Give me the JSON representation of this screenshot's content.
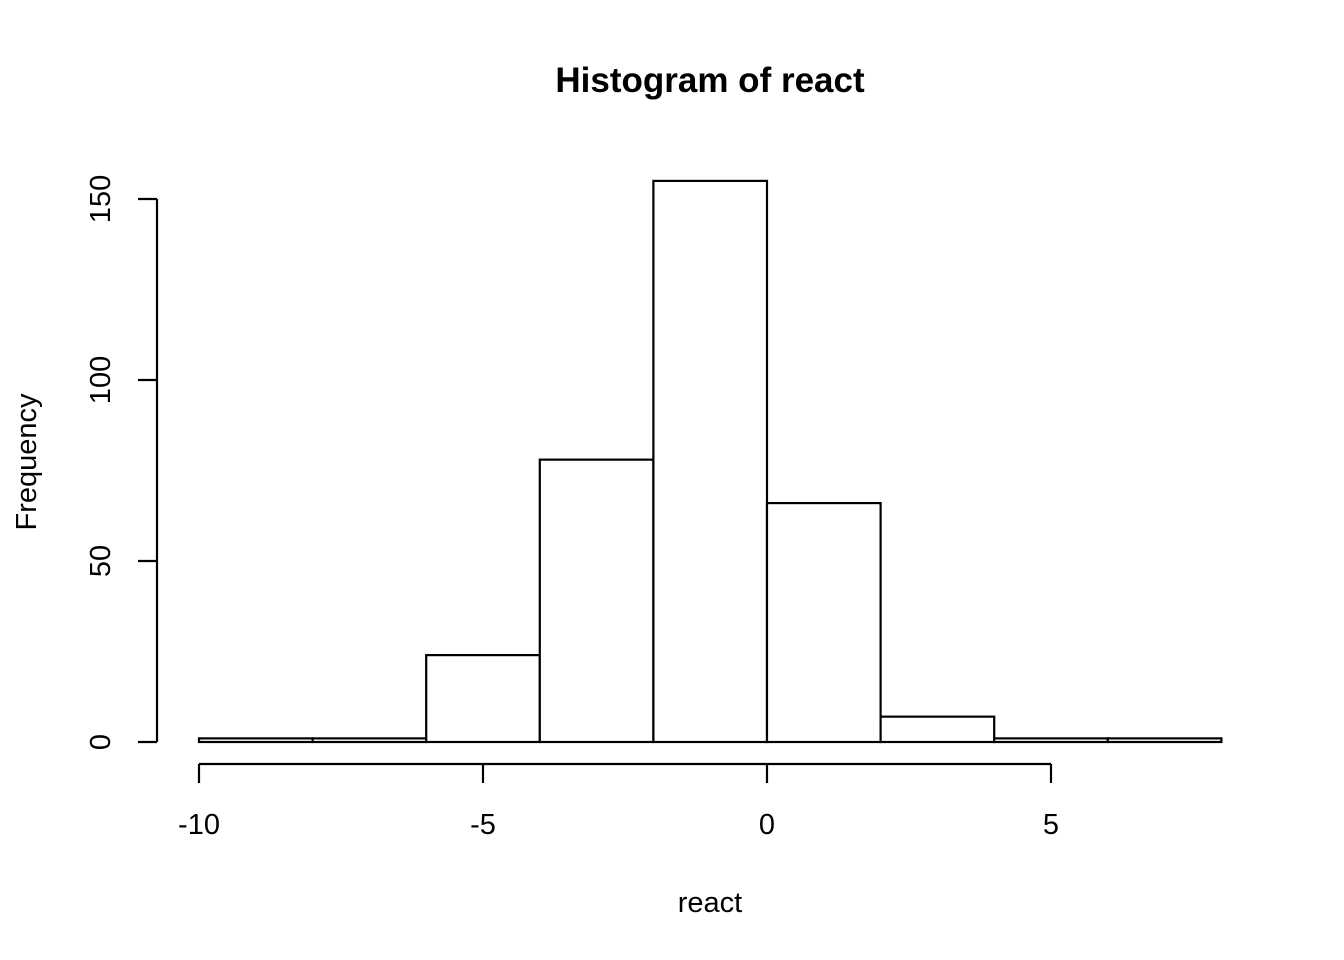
{
  "chart_data": {
    "type": "bar",
    "title": "Histogram of react",
    "xlabel": "react",
    "ylabel": "Frequency",
    "bins": [
      {
        "start": -10,
        "end": -8,
        "count": 1
      },
      {
        "start": -8,
        "end": -6,
        "count": 1
      },
      {
        "start": -6,
        "end": -4,
        "count": 24
      },
      {
        "start": -4,
        "end": -2,
        "count": 78
      },
      {
        "start": -2,
        "end": 0,
        "count": 155
      },
      {
        "start": 0,
        "end": 2,
        "count": 66
      },
      {
        "start": 2,
        "end": 4,
        "count": 7
      },
      {
        "start": 4,
        "end": 6,
        "count": 1
      },
      {
        "start": 6,
        "end": 8,
        "count": 1
      }
    ],
    "x_ticks": [
      -10,
      -5,
      0,
      5
    ],
    "y_ticks": [
      0,
      50,
      100,
      150
    ],
    "x_tick_labels": [
      "-10",
      "-5",
      "0",
      "5"
    ],
    "y_tick_labels": [
      "0",
      "50",
      "100",
      "150"
    ],
    "xlim": [
      -10,
      8
    ],
    "ylim": [
      0,
      155
    ],
    "grid": false
  }
}
